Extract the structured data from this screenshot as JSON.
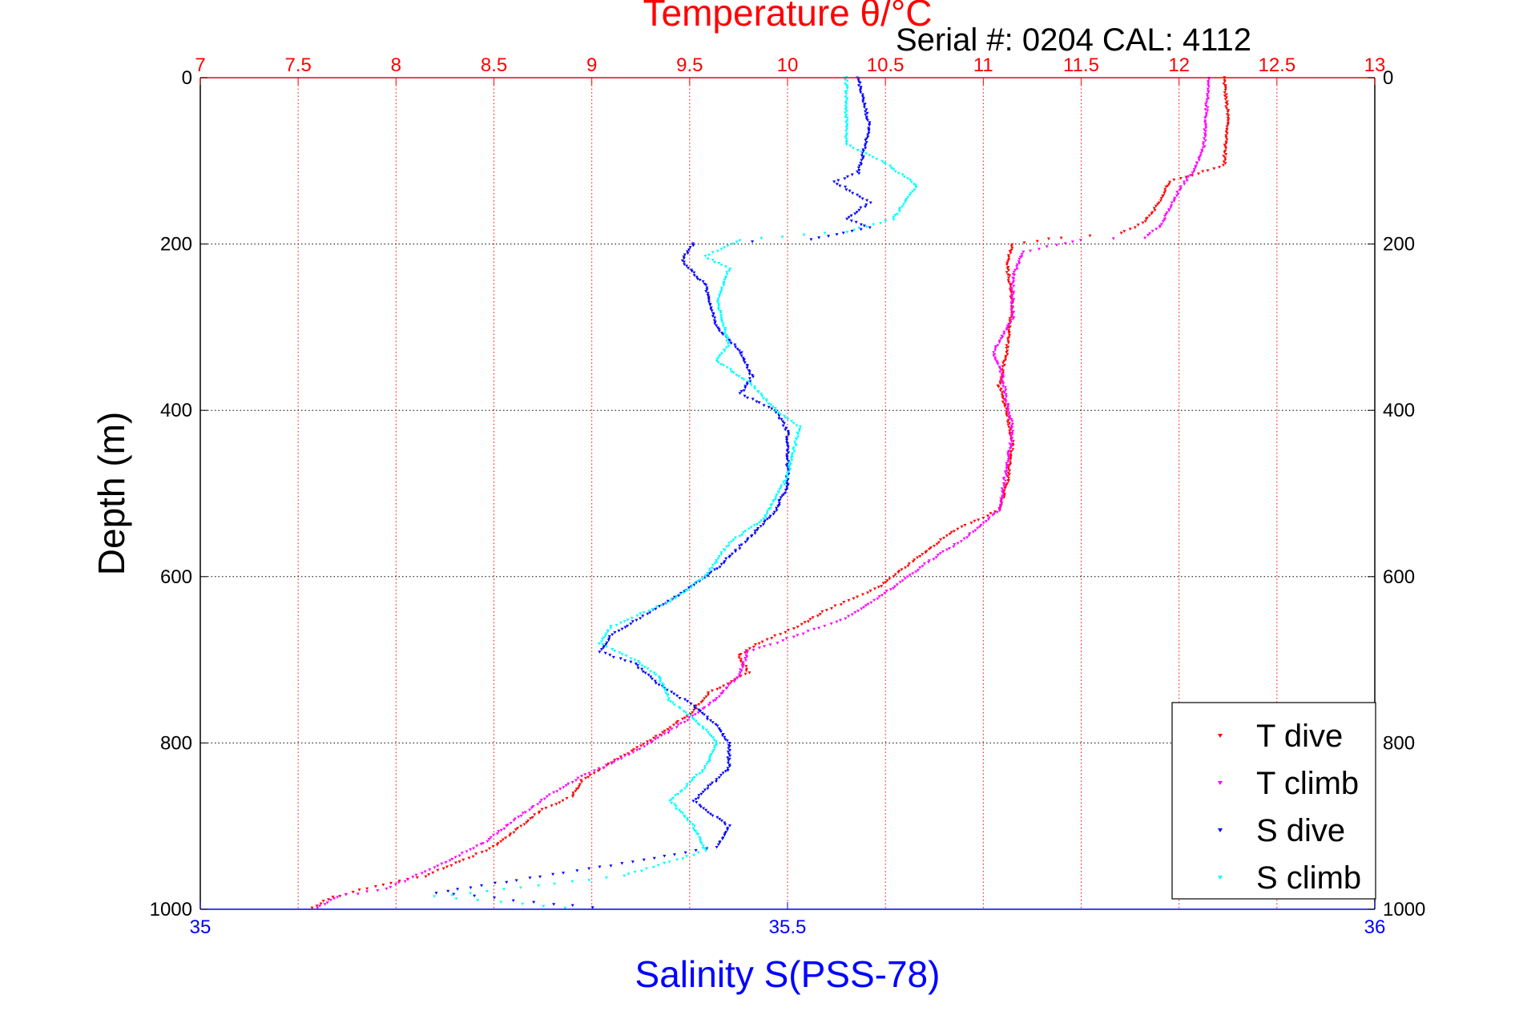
{
  "chart_data": {
    "type": "scatter",
    "title": "Temperature θ/°C",
    "subtitle": "Serial #: 0204  CAL: 4112",
    "ylabel": "Depth (m)",
    "xlabel_bottom": "Salinity S(PSS-78)",
    "y_axis": {
      "range": [
        0,
        1000
      ],
      "inverted": true,
      "ticks": [
        "0",
        "200",
        "400",
        "600",
        "800",
        "1000"
      ]
    },
    "temperature_axis": {
      "position": "top",
      "range": [
        7,
        13
      ],
      "ticks": [
        "7",
        "7.5",
        "8",
        "8.5",
        "9",
        "9.5",
        "10",
        "10.5",
        "11",
        "11.5",
        "12",
        "12.5",
        "13"
      ],
      "color": "#ff0000"
    },
    "salinity_axis": {
      "position": "bottom",
      "range": [
        35,
        36
      ],
      "ticks": [
        "35",
        "35.5",
        "36"
      ],
      "color": "#0000ff"
    },
    "grid": true,
    "legend_position": "bottom-right",
    "series": [
      {
        "name": "T dive",
        "axis": "temperature",
        "color": "#ff0000",
        "points": [
          [
            12.23,
            0
          ],
          [
            12.25,
            50
          ],
          [
            12.23,
            105
          ],
          [
            12.1,
            115
          ],
          [
            11.95,
            125
          ],
          [
            11.9,
            150
          ],
          [
            11.82,
            175
          ],
          [
            11.7,
            187
          ],
          [
            11.4,
            192
          ],
          [
            11.15,
            200
          ],
          [
            11.12,
            225
          ],
          [
            11.15,
            270
          ],
          [
            11.12,
            330
          ],
          [
            11.08,
            370
          ],
          [
            11.12,
            400
          ],
          [
            11.15,
            440
          ],
          [
            11.12,
            490
          ],
          [
            11.08,
            520
          ],
          [
            10.85,
            545
          ],
          [
            10.65,
            580
          ],
          [
            10.45,
            615
          ],
          [
            10.2,
            640
          ],
          [
            10.05,
            660
          ],
          [
            9.85,
            680
          ],
          [
            9.75,
            695
          ],
          [
            9.8,
            715
          ],
          [
            9.6,
            740
          ],
          [
            9.5,
            765
          ],
          [
            9.35,
            790
          ],
          [
            9.2,
            810
          ],
          [
            8.95,
            845
          ],
          [
            8.9,
            865
          ],
          [
            8.75,
            880
          ],
          [
            8.5,
            925
          ],
          [
            8.15,
            960
          ],
          [
            7.85,
            975
          ],
          [
            7.65,
            988
          ],
          [
            7.55,
            1000
          ]
        ]
      },
      {
        "name": "T climb",
        "axis": "temperature",
        "color": "#ff00ff",
        "points": [
          [
            12.15,
            0
          ],
          [
            12.13,
            80
          ],
          [
            12.08,
            110
          ],
          [
            12.0,
            135
          ],
          [
            11.95,
            160
          ],
          [
            11.9,
            180
          ],
          [
            11.82,
            192
          ],
          [
            11.5,
            195
          ],
          [
            11.2,
            210
          ],
          [
            11.15,
            240
          ],
          [
            11.15,
            290
          ],
          [
            11.05,
            330
          ],
          [
            11.1,
            360
          ],
          [
            11.12,
            390
          ],
          [
            11.15,
            420
          ],
          [
            11.12,
            470
          ],
          [
            11.08,
            520
          ],
          [
            10.9,
            555
          ],
          [
            10.7,
            585
          ],
          [
            10.5,
            620
          ],
          [
            10.3,
            650
          ],
          [
            10.0,
            675
          ],
          [
            9.8,
            690
          ],
          [
            9.75,
            720
          ],
          [
            9.62,
            750
          ],
          [
            9.5,
            770
          ],
          [
            9.3,
            800
          ],
          [
            9.1,
            825
          ],
          [
            8.95,
            840
          ],
          [
            8.8,
            860
          ],
          [
            8.65,
            885
          ],
          [
            8.45,
            920
          ],
          [
            8.2,
            950
          ],
          [
            7.95,
            975
          ],
          [
            7.7,
            985
          ],
          [
            7.58,
            1000
          ]
        ]
      },
      {
        "name": "S dive",
        "axis": "salinity",
        "color": "#0000ff",
        "points": [
          [
            35.56,
            0
          ],
          [
            35.57,
            60
          ],
          [
            35.56,
            115
          ],
          [
            35.54,
            125
          ],
          [
            35.57,
            150
          ],
          [
            35.55,
            170
          ],
          [
            35.57,
            180
          ],
          [
            35.52,
            195
          ],
          [
            35.42,
            200
          ],
          [
            35.41,
            220
          ],
          [
            35.43,
            250
          ],
          [
            35.44,
            300
          ],
          [
            35.46,
            330
          ],
          [
            35.47,
            360
          ],
          [
            35.46,
            380
          ],
          [
            35.49,
            400
          ],
          [
            35.5,
            425
          ],
          [
            35.5,
            490
          ],
          [
            35.49,
            520
          ],
          [
            35.47,
            550
          ],
          [
            35.44,
            590
          ],
          [
            35.41,
            620
          ],
          [
            35.38,
            645
          ],
          [
            35.35,
            670
          ],
          [
            35.34,
            690
          ],
          [
            35.37,
            705
          ],
          [
            35.39,
            730
          ],
          [
            35.42,
            755
          ],
          [
            35.44,
            780
          ],
          [
            35.45,
            800
          ],
          [
            35.45,
            830
          ],
          [
            35.42,
            870
          ],
          [
            35.45,
            900
          ],
          [
            35.44,
            925
          ],
          [
            35.36,
            945
          ],
          [
            35.2,
            980
          ],
          [
            35.35,
            1000
          ]
        ]
      },
      {
        "name": "S climb",
        "axis": "salinity",
        "color": "#00ffff",
        "points": [
          [
            35.55,
            0
          ],
          [
            35.55,
            80
          ],
          [
            35.58,
            100
          ],
          [
            35.61,
            130
          ],
          [
            35.59,
            170
          ],
          [
            35.55,
            185
          ],
          [
            35.46,
            195
          ],
          [
            35.43,
            215
          ],
          [
            35.45,
            230
          ],
          [
            35.44,
            270
          ],
          [
            35.45,
            320
          ],
          [
            35.44,
            340
          ],
          [
            35.47,
            370
          ],
          [
            35.49,
            400
          ],
          [
            35.51,
            420
          ],
          [
            35.5,
            480
          ],
          [
            35.48,
            530
          ],
          [
            35.45,
            560
          ],
          [
            35.43,
            600
          ],
          [
            35.4,
            630
          ],
          [
            35.35,
            660
          ],
          [
            35.34,
            680
          ],
          [
            35.37,
            700
          ],
          [
            35.39,
            720
          ],
          [
            35.4,
            750
          ],
          [
            35.42,
            770
          ],
          [
            35.44,
            800
          ],
          [
            35.43,
            830
          ],
          [
            35.4,
            870
          ],
          [
            35.42,
            900
          ],
          [
            35.43,
            930
          ],
          [
            35.36,
            960
          ],
          [
            35.2,
            985
          ],
          [
            35.33,
            1000
          ]
        ]
      }
    ]
  }
}
